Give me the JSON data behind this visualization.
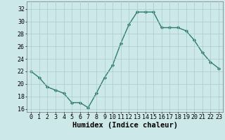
{
  "x": [
    0,
    1,
    2,
    3,
    4,
    5,
    6,
    7,
    8,
    9,
    10,
    11,
    12,
    13,
    14,
    15,
    16,
    17,
    18,
    19,
    20,
    21,
    22,
    23
  ],
  "y": [
    22,
    21,
    19.5,
    19,
    18.5,
    17,
    17,
    16.2,
    18.5,
    21,
    23,
    26.5,
    29.5,
    31.5,
    31.5,
    31.5,
    29,
    29,
    29,
    28.5,
    27,
    25,
    23.5,
    22.5
  ],
  "line_color": "#2e7d6e",
  "marker": "D",
  "markersize": 2.2,
  "linewidth": 1.0,
  "xlabel": "Humidex (Indice chaleur)",
  "ylim": [
    15.5,
    33.2
  ],
  "xlim": [
    -0.5,
    23.5
  ],
  "yticks": [
    16,
    18,
    20,
    22,
    24,
    26,
    28,
    30,
    32
  ],
  "xticks": [
    0,
    1,
    2,
    3,
    4,
    5,
    6,
    7,
    8,
    9,
    10,
    11,
    12,
    13,
    14,
    15,
    16,
    17,
    18,
    19,
    20,
    21,
    22,
    23
  ],
  "xtick_labels": [
    "0",
    "1",
    "2",
    "3",
    "4",
    "5",
    "6",
    "7",
    "8",
    "9",
    "10",
    "11",
    "12",
    "13",
    "14",
    "15",
    "16",
    "17",
    "18",
    "19",
    "20",
    "21",
    "22",
    "23"
  ],
  "bg_color": "#cce8e8",
  "grid_color": "#aacccc",
  "tick_fontsize": 6,
  "xlabel_fontsize": 7.5,
  "font_family": "monospace"
}
